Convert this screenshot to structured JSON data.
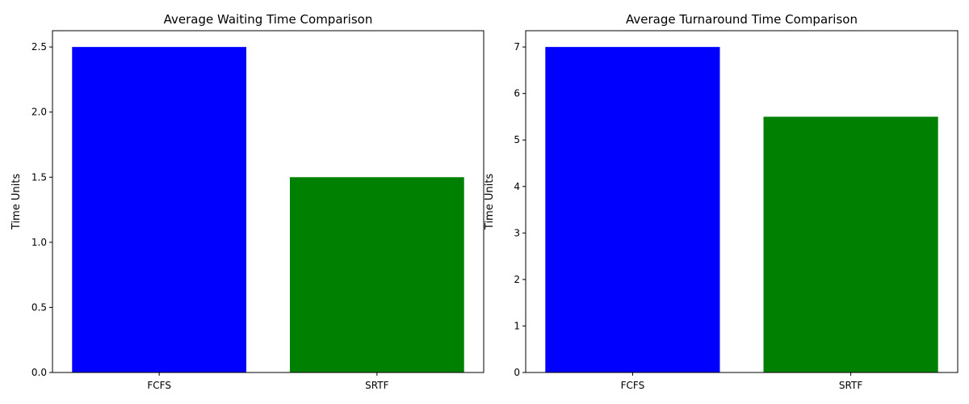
{
  "chart_data": [
    {
      "type": "bar",
      "title": "Average Waiting Time Comparison",
      "xlabel": "",
      "ylabel": "Time Units",
      "categories": [
        "FCFS",
        "SRTF"
      ],
      "values": [
        2.5,
        1.5
      ],
      "bar_colors": [
        "#0000ff",
        "#008000"
      ],
      "ylim": [
        0,
        2.625
      ],
      "yticks": [
        0.0,
        0.5,
        1.0,
        1.5,
        2.0,
        2.5
      ],
      "ytick_labels": [
        "0.0",
        "0.5",
        "1.0",
        "1.5",
        "2.0",
        "2.5"
      ],
      "grid": false,
      "legend": "none"
    },
    {
      "type": "bar",
      "title": "Average Turnaround Time Comparison",
      "xlabel": "",
      "ylabel": "Time Units",
      "categories": [
        "FCFS",
        "SRTF"
      ],
      "values": [
        7,
        5.5
      ],
      "bar_colors": [
        "#0000ff",
        "#008000"
      ],
      "ylim": [
        0,
        7.35
      ],
      "yticks": [
        0,
        1,
        2,
        3,
        4,
        5,
        6,
        7
      ],
      "ytick_labels": [
        "0",
        "1",
        "2",
        "3",
        "4",
        "5",
        "6",
        "7"
      ],
      "grid": false,
      "legend": "none"
    }
  ]
}
